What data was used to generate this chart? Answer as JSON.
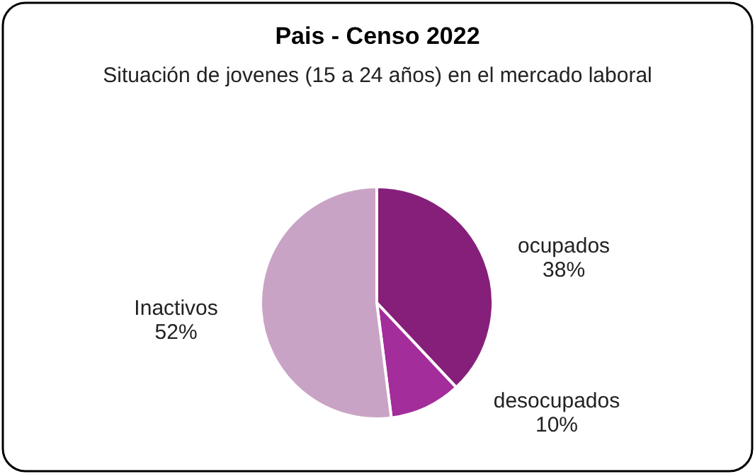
{
  "chart_data": {
    "type": "pie",
    "title": "Pais - Censo 2022",
    "subtitle": "Situación de jovenes (15 a 24 años) en el mercado laboral",
    "categories": [
      "ocupados",
      "desocupados",
      "Inactivos"
    ],
    "values": [
      38,
      10,
      52
    ],
    "value_labels": [
      "38%",
      "10%",
      "52%"
    ],
    "colors": [
      "#861f7a",
      "#a22d9b",
      "#c9a3c6"
    ]
  }
}
